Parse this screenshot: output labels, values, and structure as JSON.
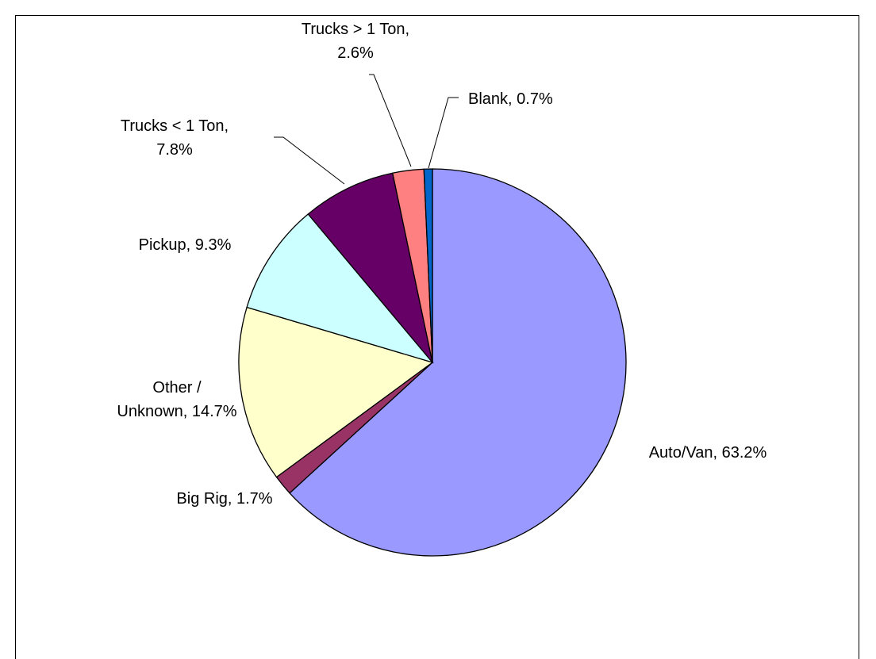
{
  "chart_data": {
    "type": "pie",
    "title": "",
    "start": "12 o'clock",
    "direction": "clockwise",
    "slices": [
      {
        "label": "Auto/Van",
        "value": 63.2,
        "text": "Auto/Van, 63.2%",
        "color": "#9999FF"
      },
      {
        "label": "Big Rig",
        "value": 1.7,
        "text": "Big Rig, 1.7%",
        "color": "#993366"
      },
      {
        "label": "Other / Unknown",
        "value": 14.7,
        "text": "Other / Unknown, 14.7%",
        "lines": [
          "Other /",
          "Unknown, 14.7%"
        ],
        "color": "#FFFFCC"
      },
      {
        "label": "Pickup",
        "value": 9.3,
        "text": "Pickup, 9.3%",
        "color": "#CCFFFF"
      },
      {
        "label": "Trucks < 1 Ton",
        "value": 7.8,
        "text": "Trucks < 1 Ton, 7.8%",
        "lines": [
          "Trucks < 1 Ton,",
          "7.8%"
        ],
        "color": "#660066"
      },
      {
        "label": "Trucks > 1 Ton",
        "value": 2.6,
        "text": "Trucks > 1 Ton, 2.6%",
        "lines": [
          "Trucks > 1 Ton,",
          "2.6%"
        ],
        "color": "#FF8080"
      },
      {
        "label": "Blank",
        "value": 0.7,
        "text": "Blank, 0.7%",
        "color": "#0066CC"
      }
    ]
  }
}
